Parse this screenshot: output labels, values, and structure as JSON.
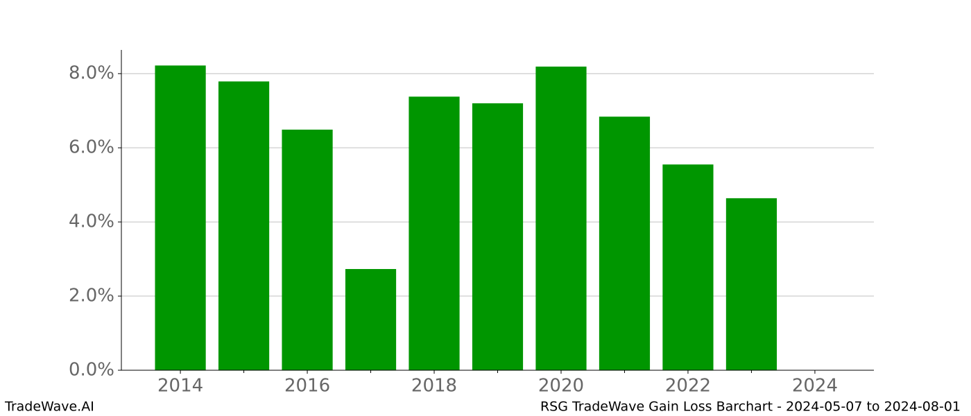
{
  "chart_data": {
    "type": "bar",
    "x": [
      2014,
      2015,
      2016,
      2017,
      2018,
      2019,
      2020,
      2021,
      2022,
      2023
    ],
    "values": [
      8.22,
      7.79,
      6.49,
      2.73,
      7.38,
      7.2,
      8.19,
      6.84,
      5.55,
      4.64
    ],
    "color": "#009600",
    "xlim": [
      2013.07,
      2024.93
    ],
    "xticks": [
      2014,
      2016,
      2018,
      2020,
      2022,
      2024
    ],
    "xminorticks": [
      2015,
      2017,
      2019,
      2021,
      2023
    ],
    "ylim": [
      0,
      8.64
    ],
    "yticks": [
      {
        "value": 0,
        "label": "0.0%"
      },
      {
        "value": 2,
        "label": "2.0%"
      },
      {
        "value": 4,
        "label": "4.0%"
      },
      {
        "value": 6,
        "label": "6.0%"
      },
      {
        "value": 8,
        "label": "8.0%"
      }
    ],
    "grid": true
  },
  "footer": {
    "left": "TradeWave.AI",
    "right": "RSG TradeWave Gain Loss Barchart - 2024-05-07 to 2024-08-01"
  }
}
